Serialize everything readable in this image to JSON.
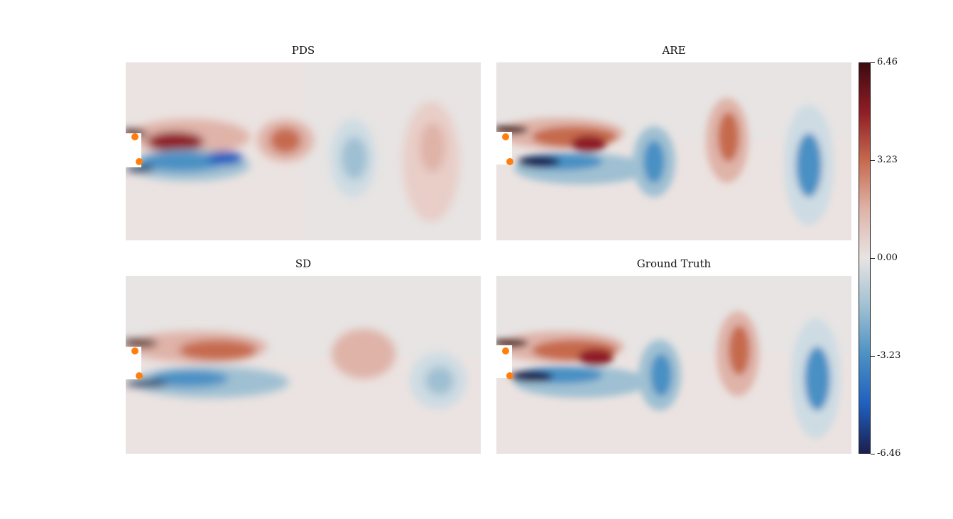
{
  "figure": {
    "panel_titles": [
      "PDS",
      "ARE",
      "SD",
      "Ground Truth"
    ]
  },
  "colorbar": {
    "ticks": [
      "6.46",
      "3.23",
      "0.00",
      "-3.23",
      "-6.46"
    ],
    "vmin": -6.46,
    "vmax": 6.46,
    "colors": [
      "#1b1f4e",
      "#1f5fbf",
      "#4a90c4",
      "#9fc0d2",
      "#e7e4e3",
      "#dfb3a8",
      "#c66a4e",
      "#8f1d25",
      "#3d0a10"
    ]
  },
  "chart_data": {
    "type": "heatmap",
    "title": "",
    "xlabel": "",
    "ylabel": "",
    "panels": [
      {
        "title": "PDS",
        "sensors": 2
      },
      {
        "title": "ARE",
        "sensors": 2
      },
      {
        "title": "SD",
        "sensors": 2
      },
      {
        "title": "Ground Truth",
        "sensors": 2
      }
    ],
    "colorbar_range": [
      -6.46,
      6.46
    ],
    "colorbar_ticks": [
      6.46,
      3.23,
      0.0,
      -3.23,
      -6.46
    ],
    "colormap": "diverging blue-white-red",
    "sensor_color": "#ff7f0e"
  }
}
